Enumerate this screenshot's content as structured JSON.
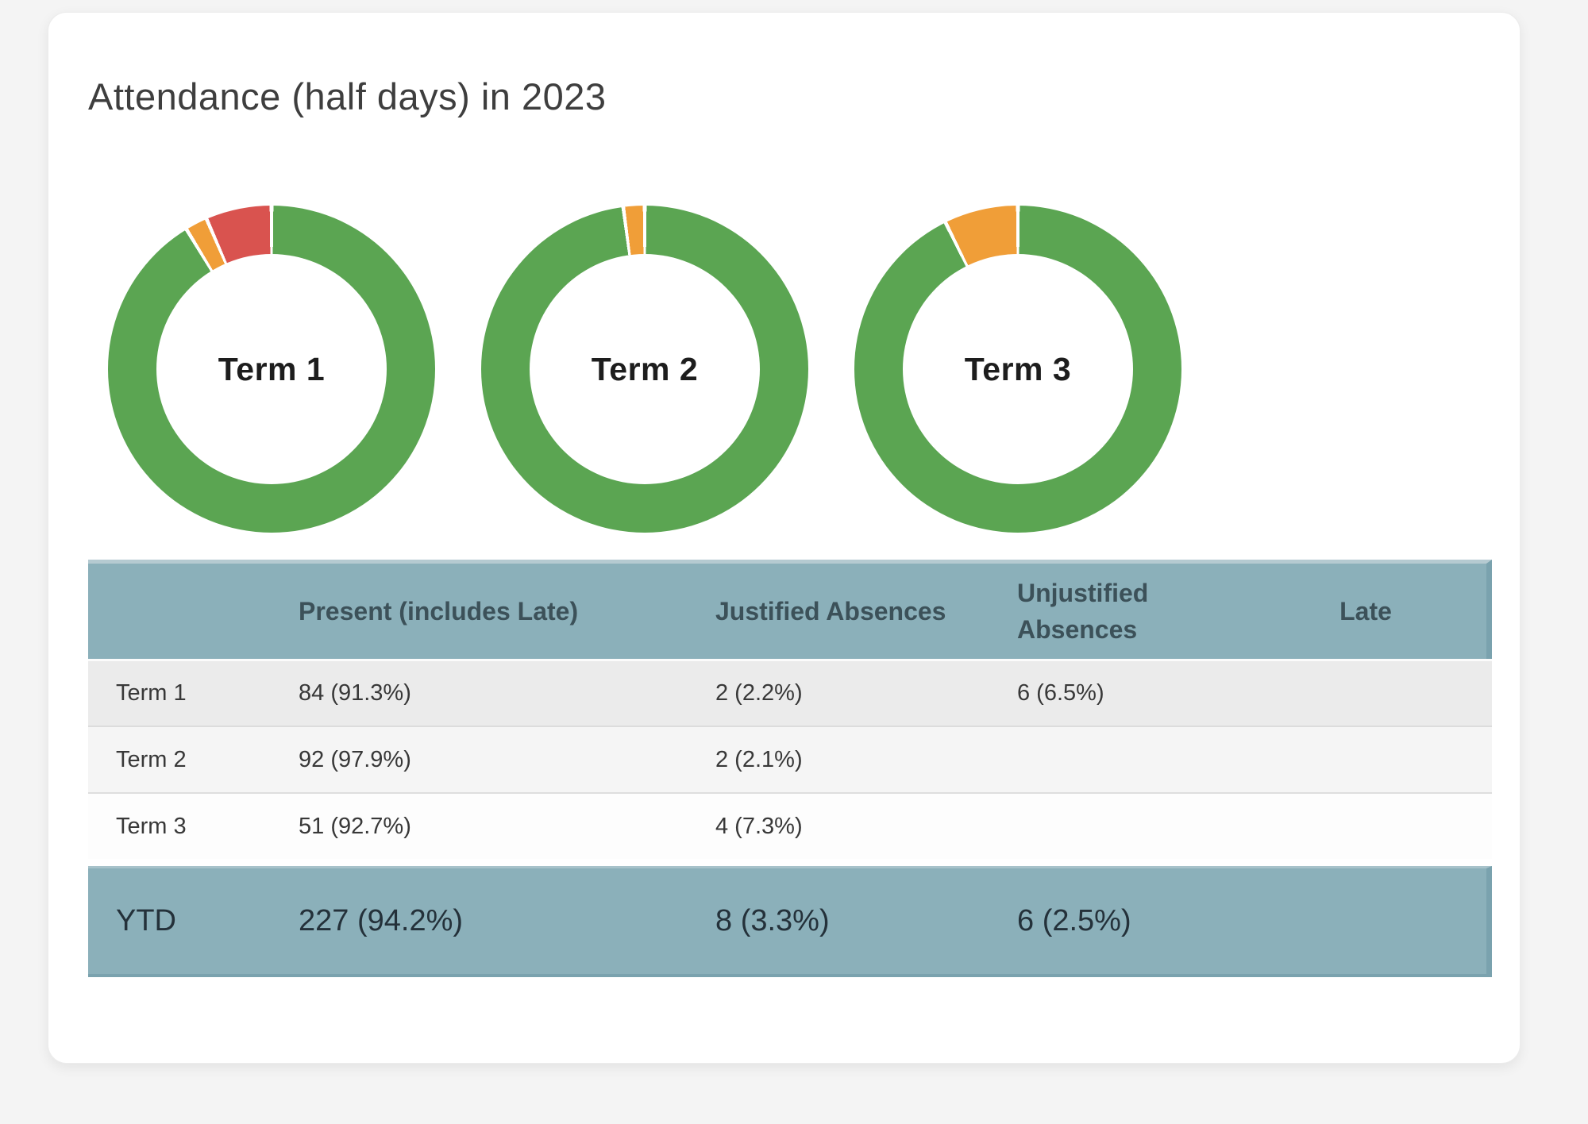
{
  "card": {
    "title": "Attendance (half days) in 2023"
  },
  "colors": {
    "present_green": "#5ba552",
    "justified_orange": "#f09e38",
    "unjustified_red": "#d9534f",
    "table_header_bg": "#8bb0ba",
    "ytd_bg": "#8bb0ba",
    "row_stripe_1": "#ebebeb",
    "row_stripe_2": "#f5f5f5",
    "row_stripe_3": "#fdfdfd",
    "slice_gap": "#ffffff"
  },
  "chart_data": [
    {
      "type": "pie",
      "donut": true,
      "title": "Term 1",
      "center_label": "Term 1",
      "labels": [
        "Present (includes Late)",
        "Justified Absences",
        "Unjustified Absences"
      ],
      "values": [
        91.3,
        2.2,
        6.5
      ],
      "colors": [
        "#5ba552",
        "#f09e38",
        "#d9534f"
      ],
      "start_angle_deg": 0,
      "direction": "clockwise",
      "legend": "none"
    },
    {
      "type": "pie",
      "donut": true,
      "title": "Term 2",
      "center_label": "Term 2",
      "labels": [
        "Present (includes Late)",
        "Justified Absences"
      ],
      "values": [
        97.9,
        2.1
      ],
      "colors": [
        "#5ba552",
        "#f09e38"
      ],
      "start_angle_deg": 0,
      "direction": "clockwise",
      "legend": "none"
    },
    {
      "type": "pie",
      "donut": true,
      "title": "Term 3",
      "center_label": "Term 3",
      "labels": [
        "Present (includes Late)",
        "Justified Absences"
      ],
      "values": [
        92.7,
        7.3
      ],
      "colors": [
        "#5ba552",
        "#f09e38"
      ],
      "start_angle_deg": 0,
      "direction": "clockwise",
      "legend": "none"
    }
  ],
  "table": {
    "headers": [
      "",
      "Present (includes Late)",
      "Justified Absences",
      "Unjustified Absences",
      "Late"
    ],
    "rows": [
      {
        "cells": [
          "Term 1",
          "84 (91.3%)",
          "2 (2.2%)",
          "6 (6.5%)",
          ""
        ]
      },
      {
        "cells": [
          "Term 2",
          "92 (97.9%)",
          "2 (2.1%)",
          "",
          ""
        ]
      },
      {
        "cells": [
          "Term 3",
          "51 (92.7%)",
          "4 (7.3%)",
          "",
          ""
        ]
      }
    ],
    "ytd": {
      "cells": [
        "YTD",
        "227 (94.2%)",
        "8 (3.3%)",
        "6 (2.5%)",
        ""
      ]
    }
  }
}
